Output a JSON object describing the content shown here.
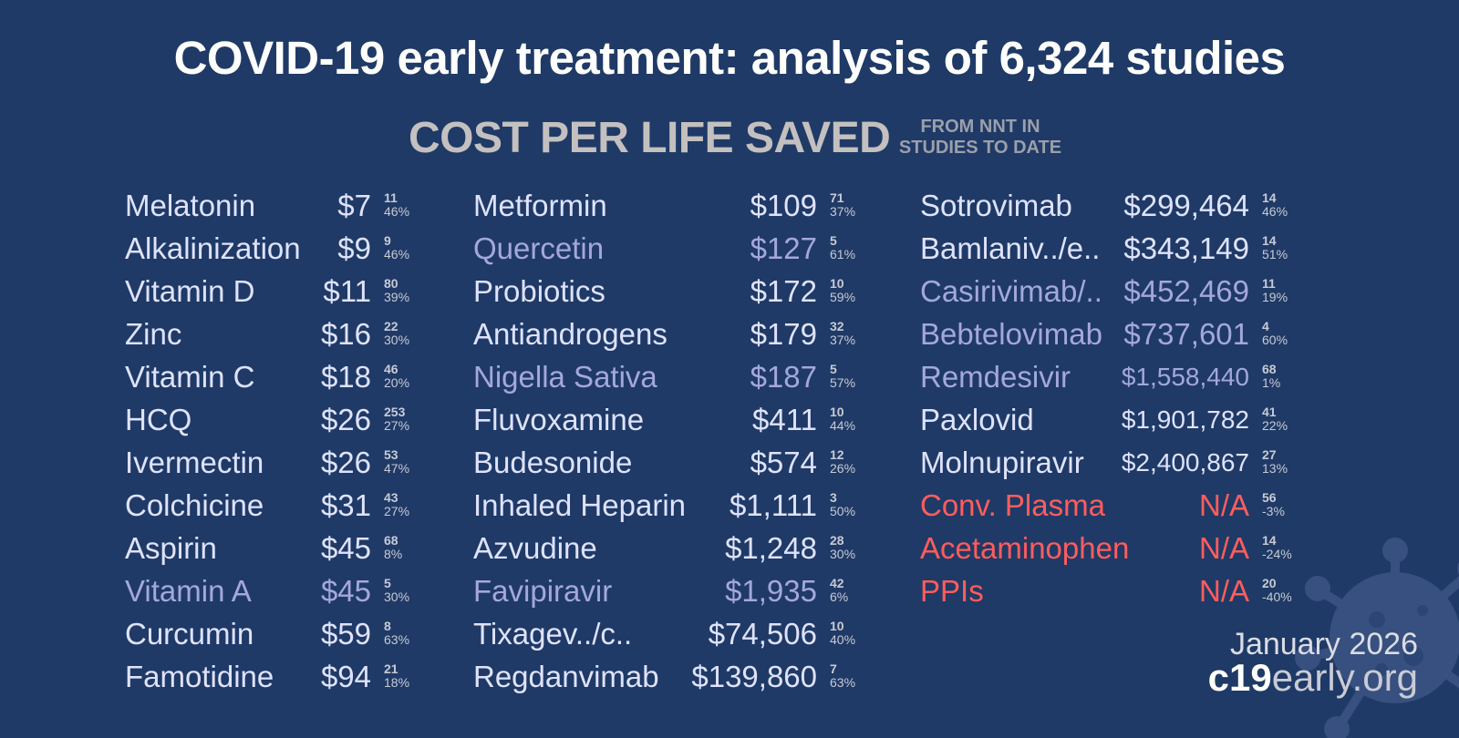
{
  "title": "COVID-19 early treatment: analysis of 6,324 studies",
  "subtitle": "COST PER LIFE SAVED",
  "subnote": "FROM NNT IN\nSTUDIES TO DATE",
  "colors": {
    "background": "#1f3a66",
    "normal": "#dfe2ff",
    "muted": "#a4a7dd",
    "negative": "#ff5d5d"
  },
  "columns": [
    {
      "items": [
        {
          "name": "Melatonin",
          "cost": "$7",
          "studies": "11",
          "effect": "46%",
          "style": "normal"
        },
        {
          "name": "Alkalinization",
          "cost": "$9",
          "studies": "9",
          "effect": "46%",
          "style": "normal"
        },
        {
          "name": "Vitamin D",
          "cost": "$11",
          "studies": "80",
          "effect": "39%",
          "style": "normal"
        },
        {
          "name": "Zinc",
          "cost": "$16",
          "studies": "22",
          "effect": "30%",
          "style": "normal"
        },
        {
          "name": "Vitamin C",
          "cost": "$18",
          "studies": "46",
          "effect": "20%",
          "style": "normal"
        },
        {
          "name": "HCQ",
          "cost": "$26",
          "studies": "253",
          "effect": "27%",
          "style": "normal"
        },
        {
          "name": "Ivermectin",
          "cost": "$26",
          "studies": "53",
          "effect": "47%",
          "style": "normal"
        },
        {
          "name": "Colchicine",
          "cost": "$31",
          "studies": "43",
          "effect": "27%",
          "style": "normal"
        },
        {
          "name": "Aspirin",
          "cost": "$45",
          "studies": "68",
          "effect": "8%",
          "style": "normal"
        },
        {
          "name": "Vitamin A",
          "cost": "$45",
          "studies": "5",
          "effect": "30%",
          "style": "muted"
        },
        {
          "name": "Curcumin",
          "cost": "$59",
          "studies": "8",
          "effect": "63%",
          "style": "normal"
        },
        {
          "name": "Famotidine",
          "cost": "$94",
          "studies": "21",
          "effect": "18%",
          "style": "normal"
        }
      ]
    },
    {
      "items": [
        {
          "name": "Metformin",
          "cost": "$109",
          "studies": "71",
          "effect": "37%",
          "style": "normal"
        },
        {
          "name": "Quercetin",
          "cost": "$127",
          "studies": "5",
          "effect": "61%",
          "style": "muted"
        },
        {
          "name": "Probiotics",
          "cost": "$172",
          "studies": "10",
          "effect": "59%",
          "style": "normal"
        },
        {
          "name": "Antiandrogens",
          "cost": "$179",
          "studies": "32",
          "effect": "37%",
          "style": "normal"
        },
        {
          "name": "Nigella Sativa",
          "cost": "$187",
          "studies": "5",
          "effect": "57%",
          "style": "muted"
        },
        {
          "name": "Fluvoxamine",
          "cost": "$411",
          "studies": "10",
          "effect": "44%",
          "style": "normal"
        },
        {
          "name": "Budesonide",
          "cost": "$574",
          "studies": "12",
          "effect": "26%",
          "style": "normal"
        },
        {
          "name": "Inhaled Heparin",
          "cost": "$1,111",
          "studies": "3",
          "effect": "50%",
          "style": "normal"
        },
        {
          "name": "Azvudine",
          "cost": "$1,248",
          "studies": "28",
          "effect": "30%",
          "style": "normal"
        },
        {
          "name": "Favipiravir",
          "cost": "$1,935",
          "studies": "42",
          "effect": "6%",
          "style": "muted"
        },
        {
          "name": "Tixagev../c..",
          "cost": "$74,506",
          "studies": "10",
          "effect": "40%",
          "style": "normal"
        },
        {
          "name": "Regdanvimab",
          "cost": "$139,860",
          "studies": "7",
          "effect": "63%",
          "style": "normal"
        }
      ]
    },
    {
      "items": [
        {
          "name": "Sotrovimab",
          "cost": "$299,464",
          "studies": "14",
          "effect": "46%",
          "style": "normal"
        },
        {
          "name": "Bamlaniv../e..",
          "cost": "$343,149",
          "studies": "14",
          "effect": "51%",
          "style": "normal"
        },
        {
          "name": "Casirivimab/..",
          "cost": "$452,469",
          "studies": "11",
          "effect": "19%",
          "style": "muted"
        },
        {
          "name": "Bebtelovimab",
          "cost": "$737,601",
          "studies": "4",
          "effect": "60%",
          "style": "muted"
        },
        {
          "name": "Remdesivir",
          "cost": "$1,558,440",
          "studies": "68",
          "effect": "1%",
          "style": "muted"
        },
        {
          "name": "Paxlovid",
          "cost": "$1,901,782",
          "studies": "41",
          "effect": "22%",
          "style": "normal"
        },
        {
          "name": "Molnupiravir",
          "cost": "$2,400,867",
          "studies": "27",
          "effect": "13%",
          "style": "normal"
        },
        {
          "name": "Conv. Plasma",
          "cost": "N/A",
          "studies": "56",
          "effect": "-3%",
          "style": "bad"
        },
        {
          "name": "Acetaminophen",
          "cost": "N/A",
          "studies": "14",
          "effect": "-24%",
          "style": "bad"
        },
        {
          "name": "PPIs",
          "cost": "N/A",
          "studies": "20",
          "effect": "-40%",
          "style": "bad"
        }
      ]
    }
  ],
  "date": "January 2026",
  "brand": {
    "strong": "c19",
    "rest": "early.org"
  },
  "icons": {
    "watermark": "virus-icon"
  }
}
